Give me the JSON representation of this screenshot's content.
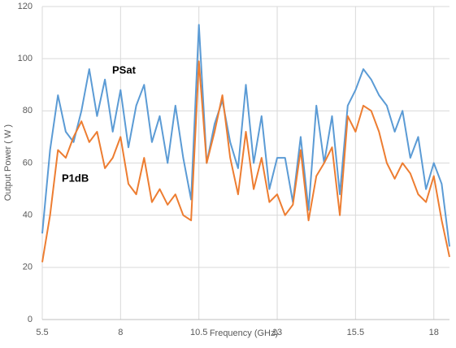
{
  "chart_data": {
    "type": "line",
    "xlabel": "Frequency (GHz)",
    "ylabel": "Output Power ( W )",
    "x": [
      5.5,
      5.75,
      6.0,
      6.25,
      6.5,
      6.75,
      7.0,
      7.25,
      7.5,
      7.75,
      8.0,
      8.25,
      8.5,
      8.75,
      9.0,
      9.25,
      9.5,
      9.75,
      10.0,
      10.25,
      10.5,
      10.75,
      11.0,
      11.25,
      11.5,
      11.75,
      12.0,
      12.25,
      12.5,
      12.75,
      13.0,
      13.25,
      13.5,
      13.75,
      14.0,
      14.25,
      14.5,
      14.75,
      15.0,
      15.25,
      15.5,
      15.75,
      16.0,
      16.25,
      16.5,
      16.75,
      17.0,
      17.25,
      17.5,
      17.75,
      18.0,
      18.25,
      18.5
    ],
    "series": [
      {
        "name": "PSat",
        "color": "#5b9bd5",
        "values": [
          33,
          65,
          86,
          72,
          68,
          80,
          96,
          78,
          92,
          72,
          88,
          66,
          82,
          90,
          68,
          78,
          60,
          82,
          62,
          46,
          113,
          60,
          75,
          84,
          68,
          58,
          90,
          60,
          78,
          50,
          62,
          62,
          45,
          70,
          42,
          82,
          60,
          78,
          48,
          82,
          88,
          96,
          92,
          86,
          82,
          72,
          80,
          62,
          70,
          50,
          60,
          52,
          28
        ]
      },
      {
        "name": "P1dB",
        "color": "#ed7d31",
        "values": [
          22,
          40,
          65,
          62,
          70,
          76,
          68,
          72,
          58,
          62,
          70,
          52,
          48,
          62,
          45,
          50,
          44,
          48,
          40,
          38,
          99,
          60,
          72,
          86,
          62,
          48,
          72,
          50,
          62,
          45,
          48,
          40,
          44,
          65,
          38,
          55,
          60,
          66,
          40,
          78,
          72,
          82,
          80,
          72,
          60,
          54,
          60,
          56,
          48,
          45,
          55,
          38,
          24
        ]
      }
    ],
    "xlim": [
      5.5,
      18.5
    ],
    "xticks": [
      5.5,
      8,
      10.5,
      13,
      15.5,
      18
    ],
    "ylim": [
      0,
      120
    ],
    "yticks": [
      0,
      20,
      40,
      60,
      80,
      100,
      120
    ],
    "grid": true
  }
}
